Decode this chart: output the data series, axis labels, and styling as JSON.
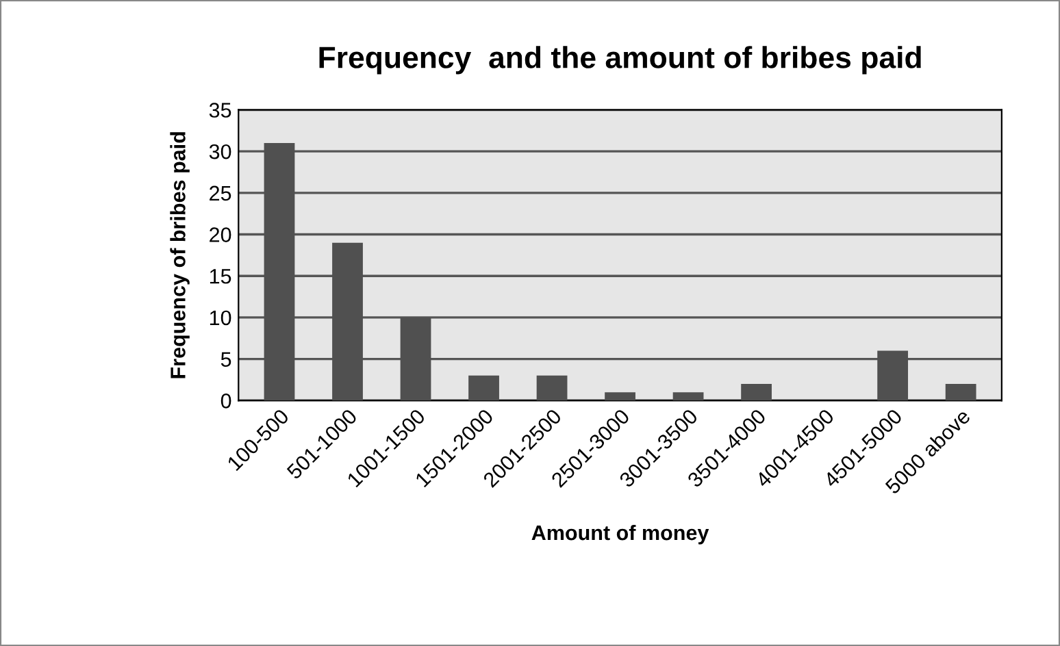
{
  "chart_data": {
    "type": "bar",
    "title": "Frequency  and the amount of bribes paid",
    "xlabel": "Amount of money",
    "ylabel": "Frequency of bribes paid",
    "categories": [
      "100-500",
      "501-1000",
      "1001-1500",
      "1501-2000",
      "2001-2500",
      "2501-3000",
      "3001-3500",
      "3501-4000",
      "4001-4500",
      "4501-5000",
      "5000 above"
    ],
    "values": [
      31,
      19,
      10,
      3,
      3,
      1,
      1,
      2,
      0,
      6,
      2
    ],
    "color": "#505050",
    "ylim": [
      0,
      35
    ],
    "yticks": [
      0,
      5,
      10,
      15,
      20,
      25,
      30,
      35
    ],
    "grid": "y"
  }
}
